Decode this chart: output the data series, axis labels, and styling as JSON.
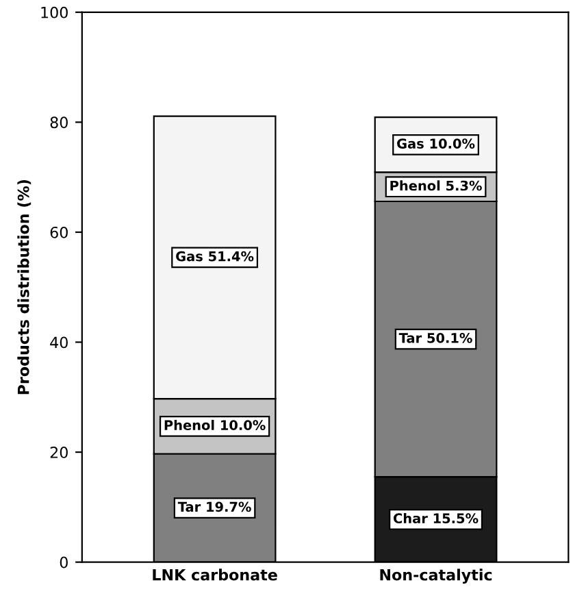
{
  "chart_data": {
    "type": "bar",
    "stacked": true,
    "ylabel": "Products distribution (%)",
    "categories": [
      "LNK carbonate",
      "Non-catalytic"
    ],
    "ylim": [
      0,
      100
    ],
    "yticks": [
      0,
      20,
      40,
      60,
      80,
      100
    ],
    "grid": false,
    "series": [
      {
        "color": "#1c1c1c",
        "values": [
          null,
          15.5
        ],
        "value_labels": [
          null,
          "Char 15.5%"
        ]
      },
      {
        "color": "#808080",
        "values": [
          19.7,
          50.1
        ],
        "value_labels": [
          "Tar 19.7%",
          "Tar 50.1%"
        ]
      },
      {
        "color": "#c4c4c4",
        "values": [
          10.0,
          5.3
        ],
        "value_labels": [
          "Phenol 10.0%",
          "Phenol 5.3%"
        ]
      },
      {
        "color": "#f4f4f4",
        "values": [
          51.4,
          10.0
        ],
        "value_labels": [
          "Gas 51.4%",
          "Gas 10.0%"
        ]
      }
    ]
  }
}
